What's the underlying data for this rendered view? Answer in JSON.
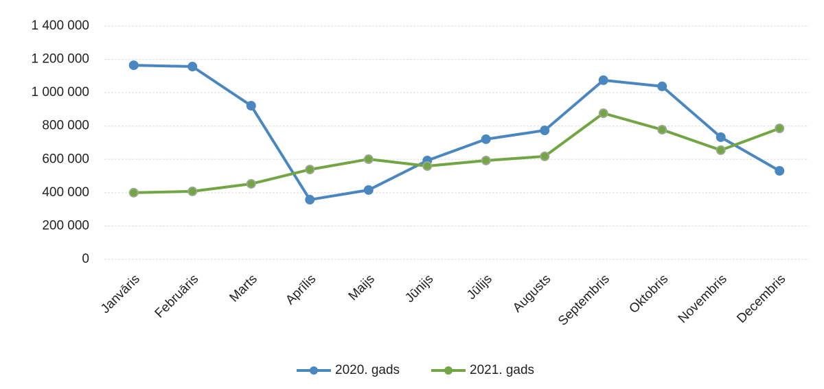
{
  "chart_data": {
    "type": "line",
    "categories": [
      "Janvāris",
      "Februāris",
      "Marts",
      "Aprīlis",
      "Maijs",
      "Jūnijs",
      "Jūlijs",
      "Augusts",
      "Septembris",
      "Oktobris",
      "Novembris",
      "Decembris"
    ],
    "series": [
      {
        "name": "2020. gads",
        "color": "#4a86c0",
        "values": [
          1165000,
          1157000,
          922000,
          358000,
          416000,
          593000,
          721000,
          774000,
          1075000,
          1038000,
          733000,
          531000
        ]
      },
      {
        "name": "2021. gads",
        "color": "#72a543",
        "values": [
          400000,
          408000,
          453000,
          539000,
          601000,
          560000,
          593000,
          618000,
          877000,
          778000,
          655000,
          786000
        ]
      }
    ],
    "ylim": [
      0,
      1400000
    ],
    "yticks": [
      0,
      {
        "value": 200000,
        "label": "200 000"
      },
      {
        "value": 400000,
        "label": "400 000"
      },
      {
        "value": 600000,
        "label": "600 000"
      },
      {
        "value": 800000,
        "label": "800 000"
      },
      {
        "value": 1000000,
        "label": "1 000 000"
      },
      {
        "value": 1200000,
        "label": "1 200 000"
      },
      {
        "value": 1400000,
        "label": "1 400 000"
      }
    ],
    "grid": true,
    "legend": "bottom"
  }
}
